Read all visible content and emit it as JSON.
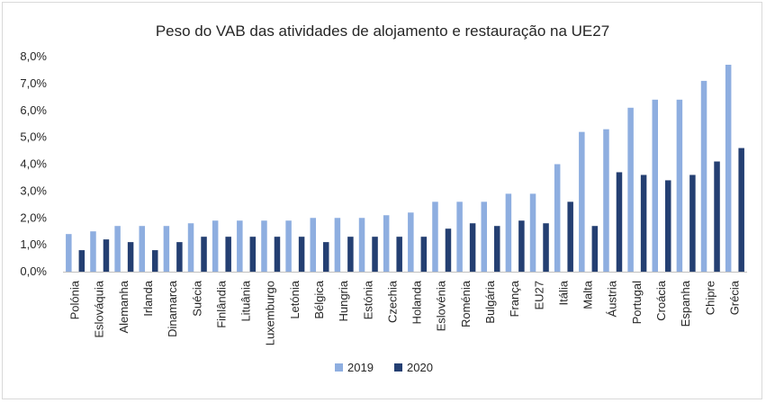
{
  "chart_data": {
    "type": "bar",
    "title": "Peso do VAB das atividades de alojamento e restauração na UE27",
    "xlabel": "",
    "ylabel": "",
    "ylim": [
      0,
      8
    ],
    "yticks": [
      "0,0%",
      "1,0%",
      "2,0%",
      "3,0%",
      "4,0%",
      "5,0%",
      "6,0%",
      "7,0%",
      "8,0%"
    ],
    "grid": false,
    "legend": "bottom-center",
    "categories": [
      "Polónia",
      "Eslováquia",
      "Alemanha",
      "Irlanda",
      "Dinamarca",
      "Suécia",
      "Finlândia",
      "Lituânia",
      "Luxemburgo",
      "Letónia",
      "Bélgica",
      "Hungria",
      "Estónia",
      "Czechia",
      "Holanda",
      "Eslovénia",
      "Roménia",
      "Bulgária",
      "França",
      "EU27",
      "Itália",
      "Malta",
      "Áustria",
      "Portugal",
      "Croácia",
      "Espanha",
      "Chipre",
      "Grécia"
    ],
    "series": [
      {
        "name": "2019",
        "color": "#8eaee0",
        "values": [
          1.4,
          1.5,
          1.7,
          1.7,
          1.7,
          1.8,
          1.9,
          1.9,
          1.9,
          1.9,
          2.0,
          2.0,
          2.0,
          2.1,
          2.2,
          2.6,
          2.6,
          2.6,
          2.9,
          2.9,
          4.0,
          5.2,
          5.3,
          6.1,
          6.4,
          6.4,
          7.1,
          7.7
        ]
      },
      {
        "name": "2020",
        "color": "#243f72",
        "values": [
          0.8,
          1.2,
          1.1,
          0.8,
          1.1,
          1.3,
          1.3,
          1.3,
          1.3,
          1.3,
          1.1,
          1.3,
          1.3,
          1.3,
          1.3,
          1.6,
          1.8,
          1.7,
          1.9,
          1.8,
          2.6,
          1.7,
          3.7,
          3.6,
          3.4,
          3.6,
          4.1,
          4.6
        ]
      }
    ]
  }
}
